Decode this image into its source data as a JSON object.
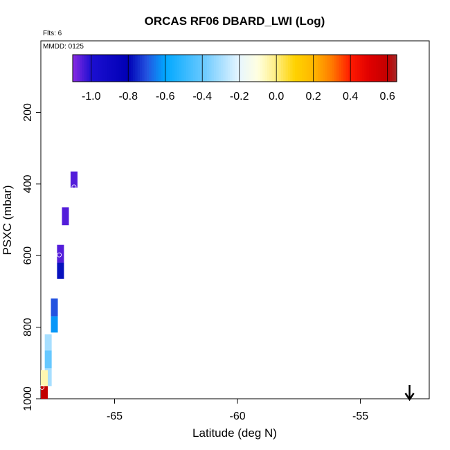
{
  "chart_data": {
    "type": "heatmap",
    "title": "ORCAS RF06 DBARD_LWI (Log)",
    "annotations": {
      "flights": "Flts: 6",
      "date": "MMDD: 0125"
    },
    "xlabel": "Latitude (deg N)",
    "ylabel": "PSXC (mbar)",
    "xlim": [
      -68.0,
      -52.2
    ],
    "ylim": [
      1000,
      0
    ],
    "y_reversed": true,
    "xticks": [
      -65,
      -60,
      -55
    ],
    "xtick_labels": [
      "-65",
      "-60",
      "-55"
    ],
    "yticks": [
      200,
      400,
      600,
      800,
      1000
    ],
    "ytick_labels": [
      "200",
      "400",
      "600",
      "800",
      "1000"
    ],
    "colorbar": {
      "range": [
        -1.1,
        0.65
      ],
      "ticks": [
        -1.0,
        -0.8,
        -0.6,
        -0.4,
        -0.2,
        0.0,
        0.2,
        0.4,
        0.6
      ],
      "tick_labels": [
        "-1.0",
        "-0.8",
        "-0.6",
        "-0.4",
        "-0.2",
        "0.0",
        "0.2",
        "0.4",
        "0.6"
      ],
      "stops": [
        {
          "v": -1.1,
          "c": "#8a2be2"
        },
        {
          "v": -1.0,
          "c": "#1c0fd1"
        },
        {
          "v": -0.8,
          "c": "#0000b5"
        },
        {
          "v": -0.7,
          "c": "#2353e0"
        },
        {
          "v": -0.6,
          "c": "#00a8ff"
        },
        {
          "v": -0.4,
          "c": "#66c8ff"
        },
        {
          "v": -0.2,
          "c": "#e8f6ff"
        },
        {
          "v": -0.1,
          "c": "#ffffe0"
        },
        {
          "v": 0.0,
          "c": "#ffee80"
        },
        {
          "v": 0.1,
          "c": "#ffd200"
        },
        {
          "v": 0.2,
          "c": "#ffb700"
        },
        {
          "v": 0.3,
          "c": "#ff7a00"
        },
        {
          "v": 0.4,
          "c": "#ff1a00"
        },
        {
          "v": 0.5,
          "c": "#e00000"
        },
        {
          "v": 0.6,
          "c": "#c20000"
        },
        {
          "v": 0.65,
          "c": "#a52a2a"
        }
      ]
    },
    "cells": [
      {
        "lat": -66.65,
        "p_top": 365,
        "p_bot": 410,
        "value": -1.05
      },
      {
        "lat": -67.0,
        "p_top": 465,
        "p_bot": 515,
        "value": -1.05
      },
      {
        "lat": -67.2,
        "p_top": 570,
        "p_bot": 620,
        "value": -1.05
      },
      {
        "lat": -67.2,
        "p_top": 620,
        "p_bot": 665,
        "value": -0.78
      },
      {
        "lat": -67.45,
        "p_top": 720,
        "p_bot": 770,
        "value": -0.7
      },
      {
        "lat": -67.45,
        "p_top": 770,
        "p_bot": 815,
        "value": -0.62
      },
      {
        "lat": -67.7,
        "p_top": 820,
        "p_bot": 865,
        "value": -0.3
      },
      {
        "lat": -67.7,
        "p_top": 865,
        "p_bot": 915,
        "value": -0.4
      },
      {
        "lat": -67.7,
        "p_top": 915,
        "p_bot": 965,
        "value": -0.3
      },
      {
        "lat": -67.9,
        "p_top": 920,
        "p_bot": 965,
        "value": -0.05
      },
      {
        "lat": -67.9,
        "p_top": 965,
        "p_bot": 1000,
        "value": 0.6
      }
    ],
    "arrow": {
      "lat": -53.0,
      "direction": "down"
    }
  }
}
